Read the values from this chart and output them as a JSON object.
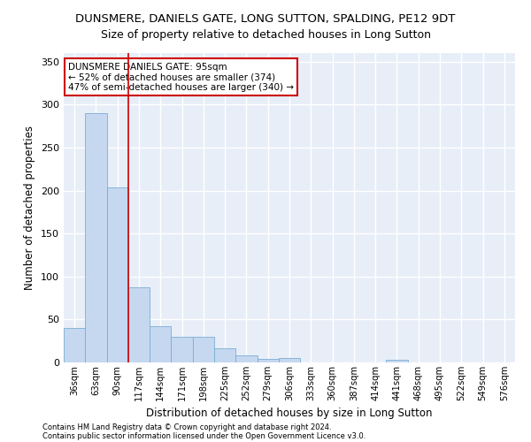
{
  "title": "DUNSMERE, DANIELS GATE, LONG SUTTON, SPALDING, PE12 9DT",
  "subtitle": "Size of property relative to detached houses in Long Sutton",
  "xlabel": "Distribution of detached houses by size in Long Sutton",
  "ylabel": "Number of detached properties",
  "bar_color": "#c5d8f0",
  "bar_edge_color": "#7aadd4",
  "background_color": "#e8eef8",
  "grid_color": "#ffffff",
  "categories": [
    "36sqm",
    "63sqm",
    "90sqm",
    "117sqm",
    "144sqm",
    "171sqm",
    "198sqm",
    "225sqm",
    "252sqm",
    "279sqm",
    "306sqm",
    "333sqm",
    "360sqm",
    "387sqm",
    "414sqm",
    "441sqm",
    "468sqm",
    "495sqm",
    "522sqm",
    "549sqm",
    "576sqm"
  ],
  "values": [
    40,
    290,
    204,
    87,
    42,
    30,
    30,
    16,
    8,
    4,
    5,
    0,
    0,
    0,
    0,
    3,
    0,
    0,
    0,
    0,
    0
  ],
  "vline_x_pos": 2.5,
  "vline_color": "#cc0000",
  "annotation_text": "DUNSMERE DANIELS GATE: 95sqm\n← 52% of detached houses are smaller (374)\n47% of semi-detached houses are larger (340) →",
  "annotation_box_color": "#ffffff",
  "annotation_box_edge": "#cc0000",
  "ylim": [
    0,
    360
  ],
  "yticks": [
    0,
    50,
    100,
    150,
    200,
    250,
    300,
    350
  ],
  "footer_line1": "Contains HM Land Registry data © Crown copyright and database right 2024.",
  "footer_line2": "Contains public sector information licensed under the Open Government Licence v3.0."
}
